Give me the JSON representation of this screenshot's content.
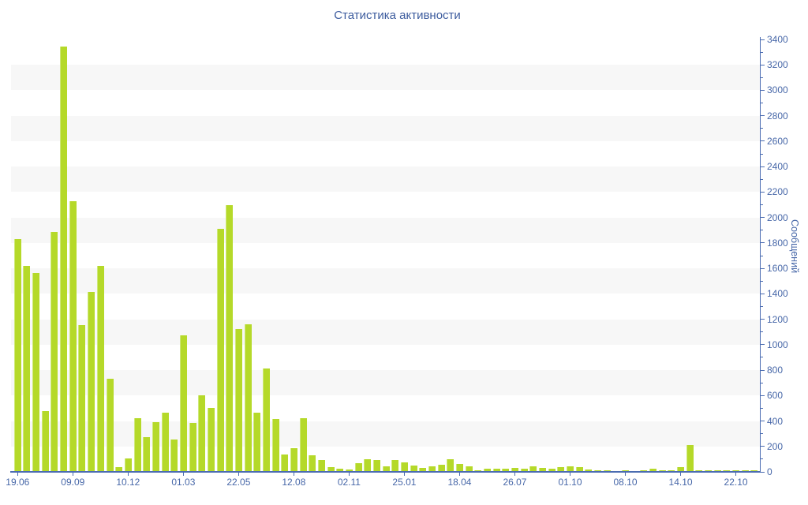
{
  "title": "Статистика активности",
  "chart_data": {
    "type": "bar",
    "title": "Статистика активности",
    "xlabel": "",
    "ylabel": "Сообщений",
    "ylim": [
      0,
      3400
    ],
    "y_tick_labels": [
      "0",
      "200",
      "400",
      "600",
      "800",
      "1000",
      "1200",
      "1400",
      "1600",
      "1800",
      "2000",
      "2200",
      "2400",
      "2600",
      "2800",
      "3000",
      "3200",
      "3400"
    ],
    "y_minor_tick_step": 100,
    "x_tick_labels": [
      "19.06",
      "09.09",
      "10.12",
      "01.03",
      "22.05",
      "12.08",
      "02.11",
      "25.01",
      "18.04",
      "26.07",
      "01.10",
      "08.10",
      "14.10",
      "22.10"
    ],
    "x_tick_every_n_bars": 6,
    "grid": "alternating light horizontal bands, 200 units tall",
    "legend_position": "none",
    "values": [
      1832,
      1621,
      1563,
      478,
      1884,
      3342,
      2128,
      1152,
      1414,
      1617,
      732,
      35,
      107,
      422,
      273,
      391,
      463,
      256,
      1073,
      387,
      600,
      505,
      1911,
      2097,
      1121,
      1162,
      463,
      815,
      418,
      136,
      184,
      422,
      132,
      91,
      35,
      27,
      20,
      70,
      101,
      91,
      43,
      95,
      75,
      50,
      30,
      45,
      55,
      100,
      60,
      45,
      15,
      25,
      25,
      25,
      30,
      25,
      45,
      30,
      25,
      40,
      45,
      35,
      18,
      10,
      12,
      8,
      12,
      8,
      12,
      25,
      10,
      12,
      39,
      210,
      12,
      15,
      10,
      12,
      10,
      12,
      10
    ],
    "colors": {
      "bar_fill": "#b5d929",
      "bar_highlight": "#cfe97a",
      "axis_line": "#4b6cb1",
      "text": "#4767a8",
      "title_text": "#3d5c9e",
      "stripe": "#f7f7f7",
      "background": "#ffffff"
    }
  }
}
